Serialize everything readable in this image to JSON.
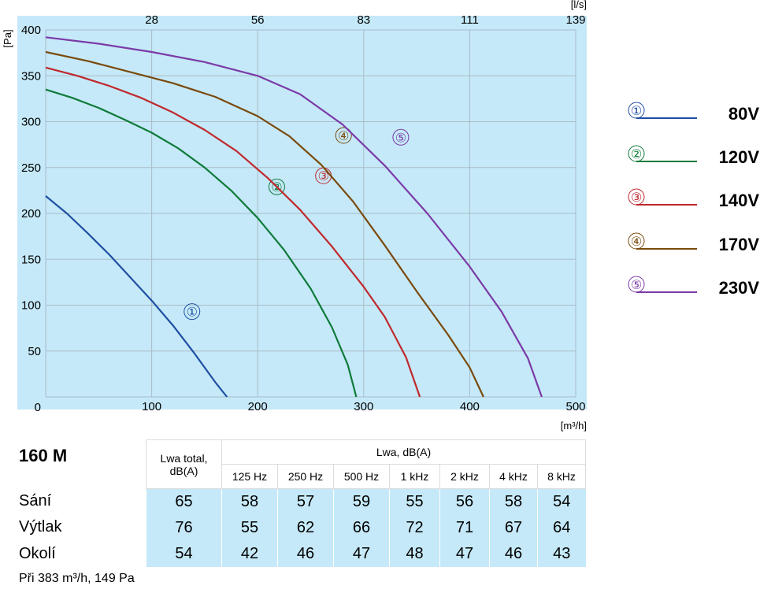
{
  "chart_data": {
    "type": "line",
    "x_unit": "[m³/h]",
    "x2_unit": "[l/s]",
    "y_unit": "[Pa]",
    "xlim": [
      0,
      500
    ],
    "ylim": [
      0,
      400
    ],
    "x_ticks": [
      100,
      200,
      300,
      400,
      500
    ],
    "y_ticks": [
      50,
      100,
      150,
      200,
      250,
      300,
      350,
      400
    ],
    "y_zero_label": "0",
    "x2_ticks": [
      {
        "label": "28",
        "at": 100
      },
      {
        "label": "56",
        "at": 200
      },
      {
        "label": "83",
        "at": 300
      },
      {
        "label": "111",
        "at": 400
      },
      {
        "label": "139",
        "at": 500
      }
    ],
    "grid": true,
    "legend_position": "right",
    "series": [
      {
        "name": "80V",
        "marker": "①",
        "color": "#1f4fa3",
        "marker_at": [
          138,
          93
        ],
        "points": [
          [
            0,
            219
          ],
          [
            20,
            200
          ],
          [
            40,
            178
          ],
          [
            60,
            155
          ],
          [
            80,
            130
          ],
          [
            100,
            105
          ],
          [
            120,
            78
          ],
          [
            140,
            48
          ],
          [
            160,
            16
          ],
          [
            171,
            0
          ]
        ]
      },
      {
        "name": "120V",
        "marker": "②",
        "color": "#0f7a3a",
        "marker_at": [
          218,
          229
        ],
        "points": [
          [
            0,
            335
          ],
          [
            25,
            326
          ],
          [
            50,
            315
          ],
          [
            75,
            302
          ],
          [
            100,
            288
          ],
          [
            125,
            271
          ],
          [
            150,
            250
          ],
          [
            175,
            225
          ],
          [
            200,
            195
          ],
          [
            225,
            160
          ],
          [
            250,
            118
          ],
          [
            270,
            76
          ],
          [
            285,
            35
          ],
          [
            293,
            0
          ]
        ]
      },
      {
        "name": "140V",
        "marker": "③",
        "color": "#c0282d",
        "marker_at": [
          262,
          241
        ],
        "points": [
          [
            0,
            359
          ],
          [
            30,
            350
          ],
          [
            60,
            339
          ],
          [
            90,
            326
          ],
          [
            120,
            310
          ],
          [
            150,
            291
          ],
          [
            180,
            268
          ],
          [
            210,
            238
          ],
          [
            240,
            204
          ],
          [
            270,
            164
          ],
          [
            300,
            120
          ],
          [
            320,
            87
          ],
          [
            340,
            43
          ],
          [
            353,
            0
          ]
        ]
      },
      {
        "name": "170V",
        "marker": "④",
        "color": "#7a4a0d",
        "marker_at": [
          281,
          285
        ],
        "points": [
          [
            0,
            376
          ],
          [
            40,
            366
          ],
          [
            80,
            354
          ],
          [
            120,
            342
          ],
          [
            160,
            327
          ],
          [
            200,
            306
          ],
          [
            230,
            284
          ],
          [
            260,
            253
          ],
          [
            290,
            213
          ],
          [
            320,
            165
          ],
          [
            350,
            115
          ],
          [
            380,
            67
          ],
          [
            400,
            32
          ],
          [
            413,
            0
          ]
        ]
      },
      {
        "name": "230V",
        "marker": "⑤",
        "color": "#7b3aa8",
        "marker_at": [
          335,
          283
        ],
        "points": [
          [
            0,
            392
          ],
          [
            50,
            385
          ],
          [
            100,
            376
          ],
          [
            150,
            365
          ],
          [
            200,
            350
          ],
          [
            240,
            330
          ],
          [
            280,
            297
          ],
          [
            320,
            252
          ],
          [
            360,
            200
          ],
          [
            400,
            142
          ],
          [
            430,
            93
          ],
          [
            455,
            42
          ],
          [
            468,
            0
          ]
        ]
      }
    ]
  },
  "model": "160 M",
  "table": {
    "total_header": "Lwa total, dB(A)",
    "total_header_lines": [
      "Lwa total,",
      "dB(A)"
    ],
    "band_header": "Lwa, dB(A)",
    "bands": [
      "125 Hz",
      "250 Hz",
      "500 Hz",
      "1 kHz",
      "2 kHz",
      "4 kHz",
      "8 kHz"
    ],
    "rows": [
      {
        "label": "Sání",
        "total": "65",
        "values": [
          "58",
          "57",
          "59",
          "55",
          "56",
          "58",
          "54"
        ]
      },
      {
        "label": "Výtlak",
        "total": "76",
        "values": [
          "55",
          "62",
          "66",
          "72",
          "71",
          "67",
          "64"
        ]
      },
      {
        "label": "Okolí",
        "total": "54",
        "values": [
          "42",
          "46",
          "47",
          "48",
          "47",
          "46",
          "43"
        ]
      }
    ]
  },
  "footnote": "Při 383 m³/h, 149 Pa"
}
